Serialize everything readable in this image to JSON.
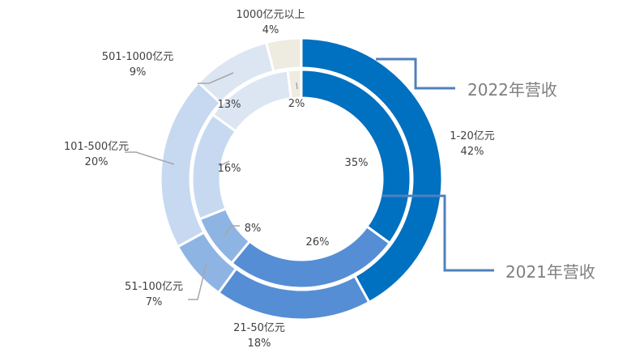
{
  "chart_data": {
    "type": "donut",
    "categories": [
      "1-20亿元",
      "21-50亿元",
      "51-100亿元",
      "101-500亿元",
      "501-1000亿元",
      "1000亿元以上"
    ],
    "colors": [
      "#0070C0",
      "#558ED5",
      "#8EB4E3",
      "#C6D9F1",
      "#DCE6F2",
      "#EEECE1"
    ],
    "series": [
      {
        "name": "2022年营收",
        "ring": "outer",
        "values": [
          42,
          18,
          7,
          20,
          9,
          4
        ]
      },
      {
        "name": "2021年营收",
        "ring": "inner",
        "values": [
          35,
          26,
          8,
          16,
          13,
          2
        ]
      }
    ],
    "unit": "%"
  }
}
